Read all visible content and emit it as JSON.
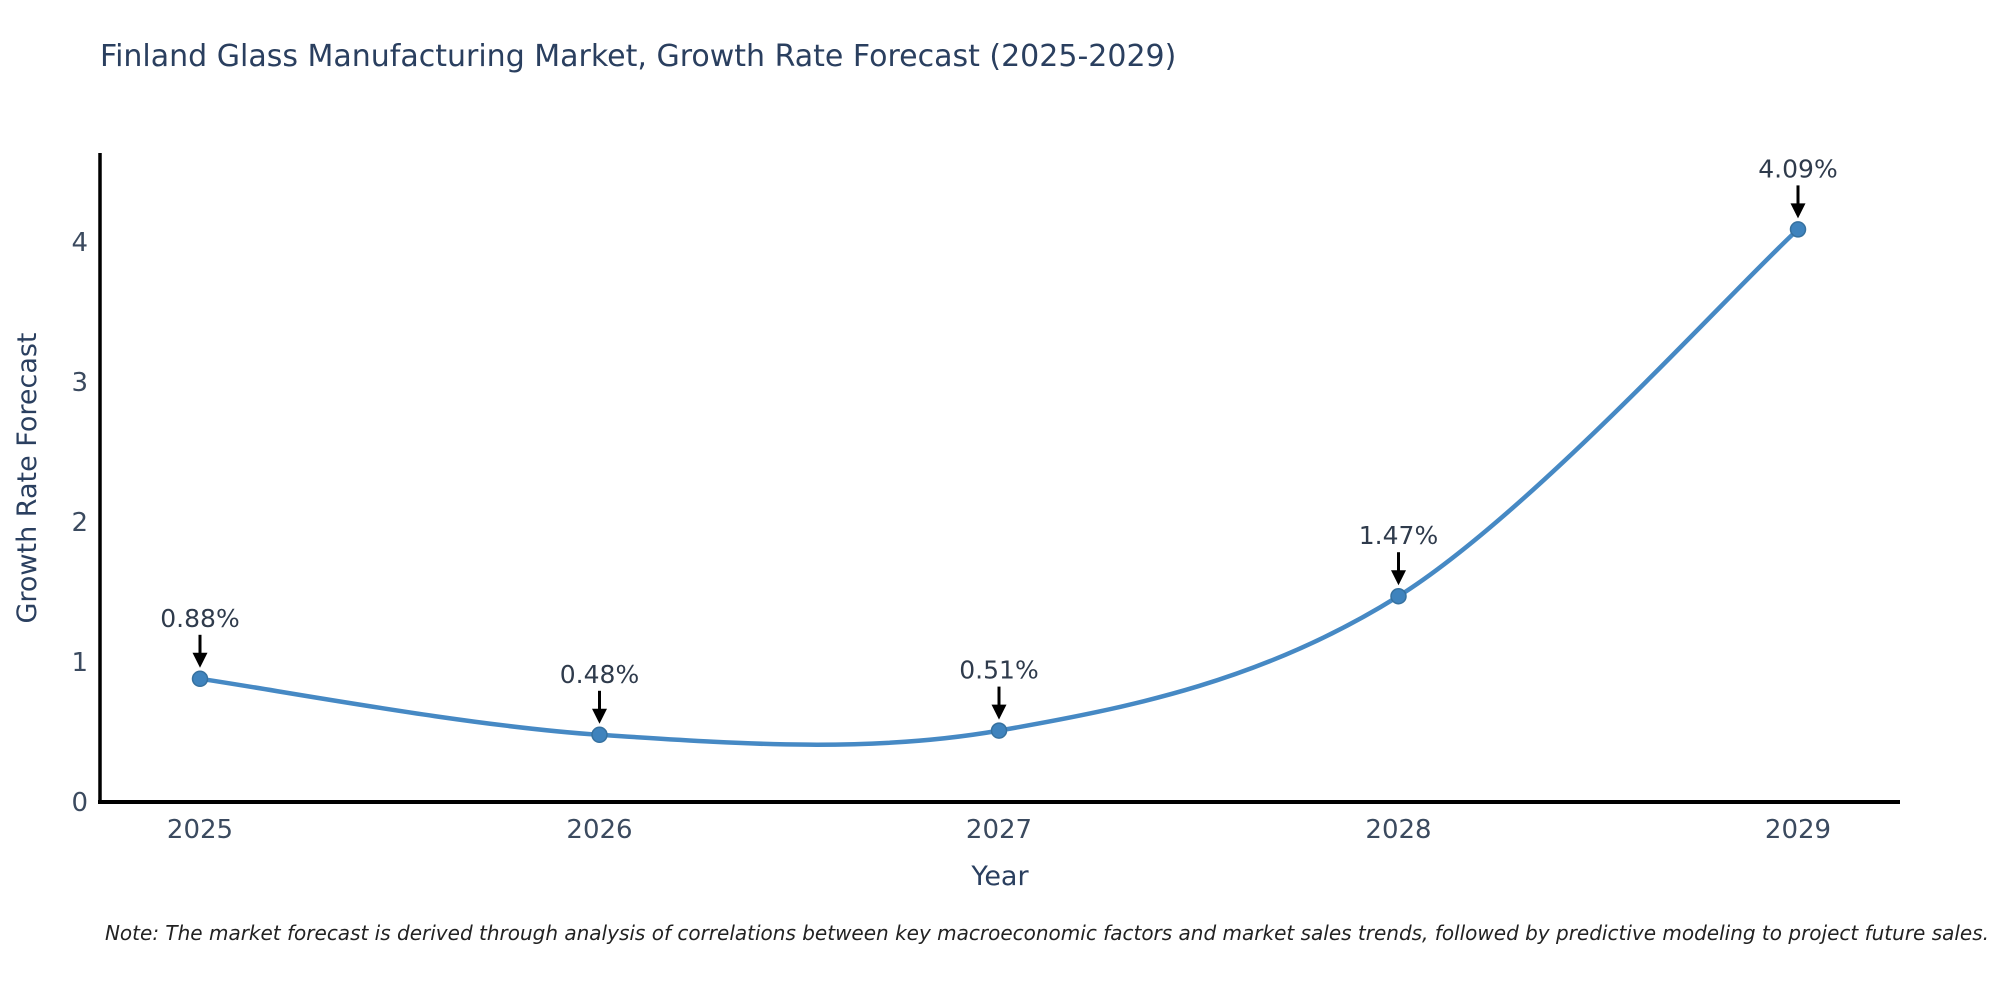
{
  "title": "Finland Glass Manufacturing Market, Growth Rate Forecast (2025-2029)",
  "note": "Note: The market forecast is derived through analysis of correlations between key macroeconomic factors and market sales trends, followed by predictive modeling to project future sales.",
  "chart_data": {
    "type": "line",
    "title": "Finland Glass Manufacturing Market, Growth Rate Forecast (2025-2029)",
    "xlabel": "Year",
    "ylabel": "Growth Rate Forecast",
    "categories": [
      2025,
      2026,
      2027,
      2028,
      2029
    ],
    "series": [
      {
        "name": "Growth Rate Forecast",
        "values": [
          0.88,
          0.48,
          0.51,
          1.47,
          4.09
        ],
        "point_labels": [
          "0.88%",
          "0.48%",
          "0.51%",
          "1.47%",
          "4.09%"
        ]
      }
    ],
    "line_shape": "spline",
    "markers": true,
    "annotations_with_arrows": true,
    "yticks": [
      0,
      1,
      2,
      3,
      4
    ],
    "ylim": [
      0,
      4.64
    ],
    "grid": false,
    "legend_position": "none",
    "colors": {
      "line": "#4689c4",
      "marker_fill": "#3f83bd",
      "marker_edge": "#36719f",
      "axis_line": "#000000",
      "arrow": "#000000",
      "title_text": "#2a3f5f",
      "axis_title_text": "#2a3f5f",
      "tick_text": "#3b4a5f",
      "annotation_text": "#2f3b4c",
      "note_text": "#222222",
      "background": "#ffffff"
    }
  }
}
